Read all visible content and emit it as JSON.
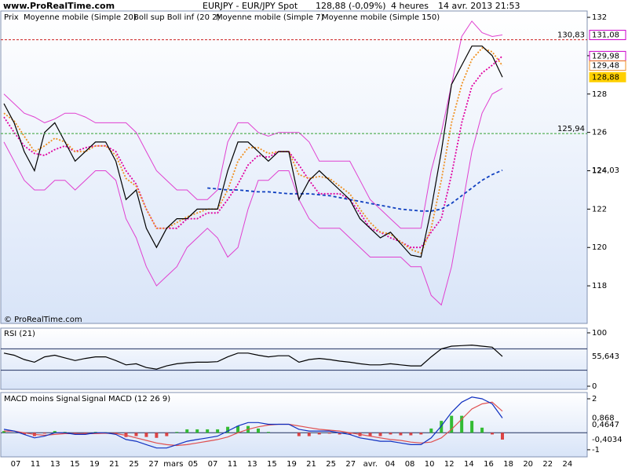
{
  "header": {
    "site": "www.ProRealTime.com",
    "title_parts": [
      "EURJPY - EUR/JPY Spot",
      "128,88 (-0,09%)",
      "4 heures",
      "14 avr. 2013 21:53"
    ],
    "copyright": "© ProRealTime.com"
  },
  "x_labels": [
    "07",
    "11",
    "13",
    "15",
    "19",
    "21",
    "25",
    "27",
    "mars",
    "05",
    "07",
    "11",
    "13",
    "15",
    "19",
    "21",
    "25",
    "27",
    "avr.",
    "04",
    "08",
    "10",
    "12",
    "14",
    "16",
    "18",
    "20",
    "22",
    "24"
  ],
  "chart_data": [
    {
      "type": "line",
      "legend_prefix": "Prix",
      "ylim": [
        116.04,
        132.33
      ],
      "yticks": [
        118,
        120,
        122,
        124,
        126,
        128,
        130,
        132
      ],
      "series": [
        {
          "name": "Boll sup Boll inf (20 2)",
          "color": "#e040d0",
          "style": "solid",
          "upper": [
            128,
            127.5,
            127,
            126.8,
            126.5,
            126.7,
            127,
            127,
            126.8,
            126.5,
            126.5,
            126.5,
            126.5,
            126,
            125,
            124,
            123.5,
            123,
            123,
            122.5,
            122.5,
            123,
            125.5,
            126.5,
            126.5,
            126,
            125.8,
            126,
            126,
            126,
            125.5,
            124.5,
            124.5,
            124.5,
            124.5,
            123.5,
            122.5,
            122,
            121.5,
            121,
            121,
            121,
            124,
            126,
            128.5,
            131,
            131.8,
            131.2,
            131,
            131.08
          ],
          "lower": [
            125.5,
            124.5,
            123.5,
            123,
            123,
            123.5,
            123.5,
            123,
            123.5,
            124,
            124,
            123.5,
            121.5,
            120.5,
            119,
            118,
            118.5,
            119,
            120,
            120.5,
            121,
            120.5,
            119.5,
            120,
            122,
            123.5,
            123.5,
            124,
            124,
            122.5,
            121.5,
            121,
            121,
            121,
            120.5,
            120,
            119.5,
            119.5,
            119.5,
            119.5,
            119,
            119,
            117.5,
            117,
            119,
            122,
            125,
            127,
            128,
            128.3
          ]
        },
        {
          "name": "Moyenne mobile (Simple 20)",
          "color": "#e000a0",
          "style": "dotted",
          "values": [
            126.8,
            126,
            125.3,
            124.9,
            124.8,
            125.1,
            125.3,
            125,
            125.2,
            125.3,
            125.3,
            125,
            124,
            123.3,
            122,
            121,
            121,
            121,
            121.5,
            121.5,
            121.8,
            121.8,
            122.5,
            123.3,
            124.3,
            124.8,
            124.7,
            125,
            125,
            124.3,
            123.5,
            122.8,
            122.8,
            122.8,
            122.5,
            121.8,
            121,
            120.8,
            120.5,
            120.3,
            120,
            120,
            120.8,
            121.5,
            123.8,
            126.5,
            128.4,
            129.1,
            129.5,
            129.98
          ]
        },
        {
          "name": "Moyenne mobile (Simple 7)",
          "color": "#f09020",
          "style": "dotted",
          "values": [
            127,
            126.6,
            125.8,
            125,
            125.3,
            125.7,
            125.5,
            125,
            125,
            125.3,
            125.3,
            124.8,
            123.6,
            123.2,
            122,
            121,
            121,
            121.3,
            121.6,
            121.8,
            122,
            122,
            123,
            124.5,
            125.2,
            125.2,
            124.9,
            125,
            125,
            123.8,
            123.6,
            123.7,
            123.6,
            123.2,
            122.8,
            122,
            121.3,
            120.8,
            120.7,
            120.3,
            119.9,
            119.7,
            121,
            123.5,
            126.5,
            128.5,
            129.8,
            130.4,
            130.2,
            129.48
          ]
        },
        {
          "name": "Moyenne mobile (Simple 150)",
          "color": "#1040c0",
          "style": "dashed",
          "values": [
            null,
            null,
            null,
            null,
            null,
            null,
            null,
            null,
            null,
            null,
            null,
            null,
            null,
            null,
            null,
            null,
            null,
            null,
            null,
            null,
            123.1,
            123.05,
            123,
            123,
            122.95,
            122.9,
            122.9,
            122.85,
            122.8,
            122.8,
            122.8,
            122.75,
            122.7,
            122.6,
            122.5,
            122.4,
            122.3,
            122.2,
            122.1,
            122,
            121.95,
            121.9,
            121.9,
            122,
            122.3,
            122.7,
            123.1,
            123.5,
            123.8,
            124.03
          ]
        },
        {
          "name": "Prix",
          "color": "#000000",
          "style": "solid",
          "values": [
            127.5,
            126.5,
            125,
            124,
            126,
            126.5,
            125.5,
            124.5,
            125,
            125.5,
            125.5,
            124.5,
            122.5,
            123,
            121,
            120,
            121,
            121.5,
            121.5,
            122,
            122,
            122,
            124,
            125.5,
            125.5,
            125,
            124.5,
            125,
            125,
            122.5,
            123.5,
            124,
            123.5,
            123,
            122.5,
            121.5,
            121,
            120.5,
            120.8,
            120.2,
            119.6,
            119.5,
            122,
            125,
            128.5,
            129.5,
            130.5,
            130.5,
            130,
            128.88
          ]
        }
      ],
      "value_labels": [
        {
          "value": 130.83,
          "label": "130,83",
          "color": "#cc2020",
          "line": true,
          "boxed": false
        },
        {
          "value": 131.08,
          "label": "131,08",
          "color": "#cc00cc",
          "line": false,
          "boxed": true
        },
        {
          "value": 129.98,
          "label": "129,98",
          "color": "#cc00cc",
          "line": false,
          "boxed": true
        },
        {
          "value": 129.48,
          "label": "129,48",
          "color": "#f09020",
          "line": false,
          "boxed": true
        },
        {
          "value": 128.88,
          "label": "128,88",
          "color": "#ffd000",
          "line": false,
          "boxed": true
        },
        {
          "value": 125.94,
          "label": "125,94",
          "color": "#30a030",
          "line": true,
          "boxed": false
        },
        {
          "value": 124.03,
          "label": "124,03",
          "color": "#1040c0",
          "line": false,
          "boxed": false
        }
      ]
    },
    {
      "type": "line",
      "ylim": [
        -5.9,
        108.8
      ],
      "yticks": [
        0,
        100
      ],
      "levels": [
        70,
        30
      ],
      "series": [
        {
          "name": "RSI (21)",
          "color": "#000000",
          "style": "solid",
          "values": [
            62,
            58,
            50,
            45,
            55,
            58,
            53,
            48,
            52,
            55,
            55,
            48,
            40,
            42,
            35,
            32,
            38,
            42,
            44,
            45,
            45,
            46,
            55,
            62,
            62,
            58,
            55,
            57,
            57,
            45,
            50,
            52,
            50,
            47,
            45,
            42,
            40,
            40,
            42,
            40,
            38,
            38,
            55,
            70,
            75,
            76,
            77,
            75,
            73,
            55.643
          ]
        }
      ],
      "value_labels": [
        {
          "value": 55.643,
          "label": "55,643",
          "color": "#000000",
          "line": false,
          "boxed": false
        }
      ]
    },
    {
      "type": "macd",
      "ylim": [
        -1.42,
        2.37
      ],
      "yticks": [
        -1,
        2
      ],
      "series": [
        {
          "name": "MACD moins Signal",
          "colors": [
            "#33bb33",
            "#dd4444"
          ],
          "style": "bars",
          "values": [
            0.1,
            0,
            -0.1,
            -0.2,
            -0.05,
            0.1,
            0.05,
            -0.05,
            -0.05,
            0.05,
            0.03,
            -0.05,
            -0.25,
            -0.2,
            -0.25,
            -0.3,
            -0.2,
            0.05,
            0.2,
            0.2,
            0.2,
            0.2,
            0.35,
            0.4,
            0.4,
            0.25,
            0.05,
            0,
            0,
            -0.2,
            -0.2,
            -0.1,
            -0.05,
            -0.1,
            -0.1,
            -0.2,
            -0.2,
            -0.2,
            -0.1,
            -0.15,
            -0.15,
            -0.1,
            0.25,
            0.7,
            1.0,
            1.0,
            0.7,
            0.3,
            -0.1,
            -0.4034
          ]
        },
        {
          "name": "Signal",
          "color": "#e05050",
          "style": "solid",
          "values": [
            0.1,
            0.1,
            0,
            -0.1,
            -0.15,
            -0.1,
            -0.05,
            -0.05,
            -0.05,
            -0.05,
            -0.03,
            -0.05,
            -0.15,
            -0.3,
            -0.45,
            -0.6,
            -0.7,
            -0.75,
            -0.7,
            -0.6,
            -0.5,
            -0.4,
            -0.25,
            0,
            0.2,
            0.35,
            0.45,
            0.5,
            0.5,
            0.4,
            0.3,
            0.2,
            0.15,
            0.1,
            0,
            -0.1,
            -0.2,
            -0.3,
            -0.4,
            -0.45,
            -0.55,
            -0.6,
            -0.55,
            -0.3,
            0.2,
            0.8,
            1.4,
            1.7,
            1.8,
            1.2714
          ]
        },
        {
          "name": "MACD (12 26 9)",
          "color": "#1030c0",
          "style": "solid",
          "values": [
            0.2,
            0.1,
            -0.1,
            -0.3,
            -0.2,
            0,
            0,
            -0.1,
            -0.1,
            0,
            0,
            -0.1,
            -0.4,
            -0.5,
            -0.7,
            -0.9,
            -0.9,
            -0.7,
            -0.5,
            -0.4,
            -0.3,
            -0.2,
            0.1,
            0.4,
            0.6,
            0.6,
            0.5,
            0.5,
            0.5,
            0.2,
            0.1,
            0.1,
            0.1,
            0,
            -0.1,
            -0.3,
            -0.4,
            -0.5,
            -0.5,
            -0.6,
            -0.7,
            -0.7,
            -0.3,
            0.4,
            1.2,
            1.8,
            2.1,
            2.0,
            1.7,
            0.868
          ]
        }
      ],
      "value_labels": [
        {
          "value": 0.868,
          "label": "0,868",
          "color": "#1030c0",
          "line": false,
          "boxed": false
        },
        {
          "value": 0.4647,
          "label": "0,4647",
          "color": "#1030c0",
          "line": false,
          "boxed": false
        },
        {
          "value": -0.4034,
          "label": "-0,4034",
          "color": "#1030c0",
          "line": false,
          "boxed": false
        }
      ]
    }
  ]
}
